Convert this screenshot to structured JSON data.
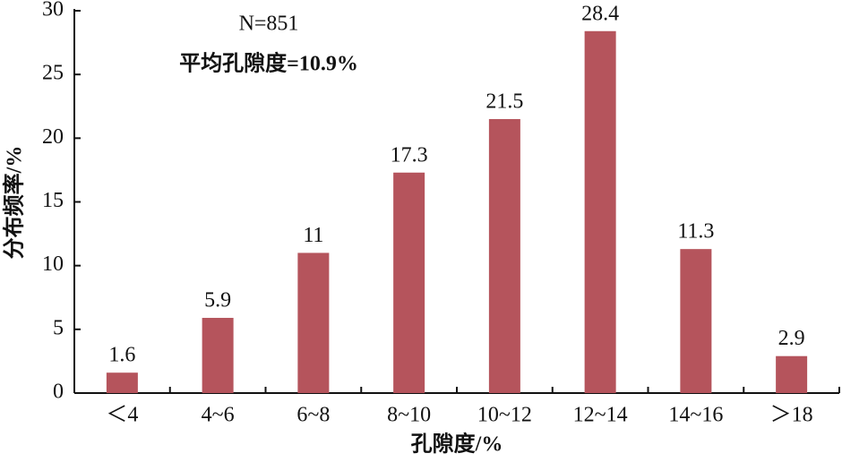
{
  "chart_data": {
    "type": "bar",
    "annotations": [
      "N=851",
      "平均孔隙度=10.9%"
    ],
    "xlabel": "孔隙度/%",
    "ylabel": "分布频率/%",
    "categories": [
      "＜4",
      "4~6",
      "6~8",
      "8~10",
      "10~12",
      "12~14",
      "14~16",
      "＞18"
    ],
    "values": [
      1.6,
      5.9,
      11,
      17.3,
      21.5,
      28.4,
      11.3,
      2.9
    ],
    "color": "#b5545c",
    "ylim": [
      0,
      30
    ],
    "yticks": [
      0,
      5,
      10,
      15,
      20,
      25,
      30
    ]
  }
}
